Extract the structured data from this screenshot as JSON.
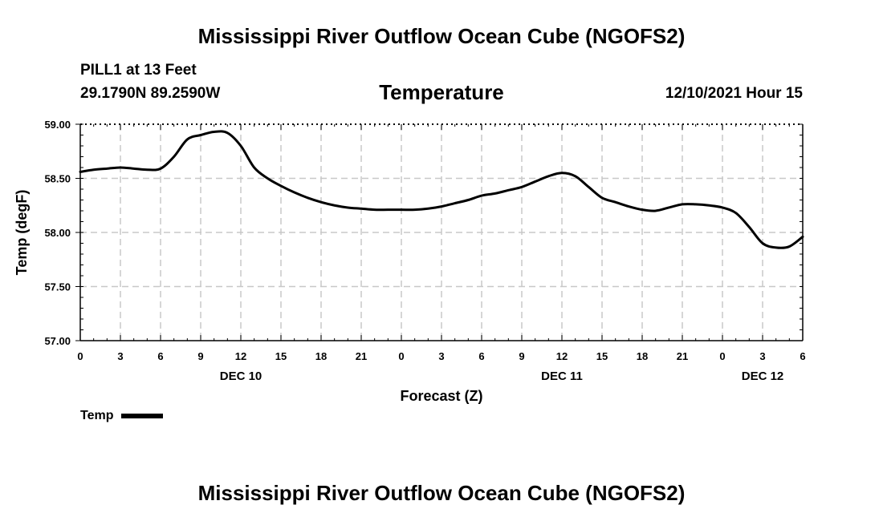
{
  "header": {
    "main_title": "Mississippi River Outflow Ocean Cube (NGOFS2)",
    "station": "PILL1 at 13 Feet",
    "coords": "29.1790N  89.2590W",
    "chart_title": "Temperature",
    "datetime": "12/10/2021 Hour 15"
  },
  "footer": {
    "title": "Mississippi River Outflow Ocean Cube (NGOFS2)"
  },
  "legend": {
    "label": "Temp",
    "color": "#000000"
  },
  "chart_data": {
    "type": "line",
    "title": "Temperature",
    "xlabel": "Forecast (Z)",
    "ylabel": "Temp (degF)",
    "xlim": [
      0,
      54
    ],
    "ylim": [
      57.0,
      59.0
    ],
    "grid": true,
    "y_ticks": [
      "57.00",
      "57.50",
      "58.00",
      "58.50",
      "59.00"
    ],
    "x_ticks": [
      "0",
      "3",
      "6",
      "9",
      "12",
      "15",
      "18",
      "21",
      "0",
      "3",
      "6",
      "9",
      "12",
      "15",
      "18",
      "21",
      "0",
      "3",
      "6"
    ],
    "day_labels": [
      {
        "text": "DEC 10",
        "hour": 12
      },
      {
        "text": "DEC 11",
        "hour": 36
      },
      {
        "text": "DEC 12",
        "hour": 51
      }
    ],
    "series": [
      {
        "name": "Temp",
        "x": [
          0,
          1,
          2,
          3,
          4,
          5,
          6,
          7,
          8,
          9,
          10,
          11,
          12,
          13,
          14,
          15,
          16,
          17,
          18,
          19,
          20,
          21,
          22,
          23,
          24,
          25,
          26,
          27,
          28,
          29,
          30,
          31,
          32,
          33,
          34,
          35,
          36,
          37,
          38,
          39,
          40,
          41,
          42,
          43,
          44,
          45,
          46,
          47,
          48,
          49,
          50,
          51,
          52,
          53,
          54
        ],
        "values": [
          58.56,
          58.58,
          58.59,
          58.6,
          58.59,
          58.58,
          58.59,
          58.7,
          58.86,
          58.9,
          58.93,
          58.92,
          58.8,
          58.6,
          58.5,
          58.43,
          58.37,
          58.32,
          58.28,
          58.25,
          58.23,
          58.22,
          58.21,
          58.21,
          58.21,
          58.21,
          58.22,
          58.24,
          58.27,
          58.3,
          58.34,
          58.36,
          58.39,
          58.42,
          58.47,
          58.52,
          58.55,
          58.52,
          58.42,
          58.32,
          58.28,
          58.24,
          58.21,
          58.2,
          58.23,
          58.26,
          58.26,
          58.25,
          58.23,
          58.18,
          58.05,
          57.9,
          57.86,
          57.87,
          57.96
        ]
      }
    ]
  }
}
